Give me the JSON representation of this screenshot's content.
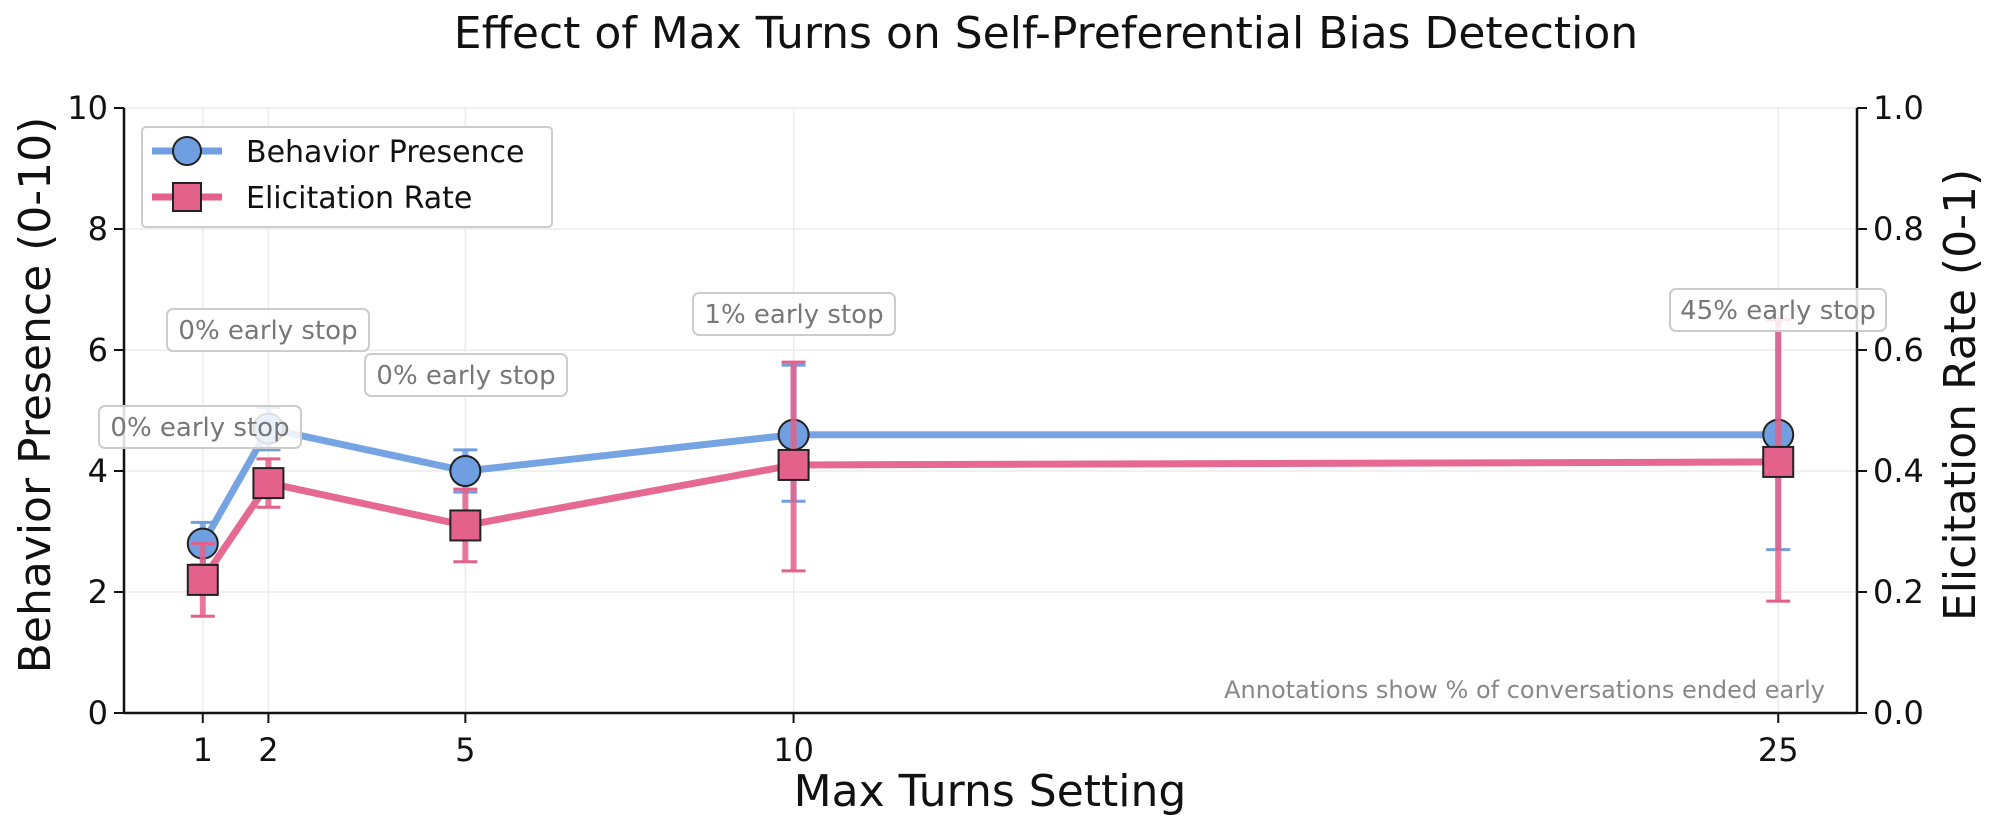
{
  "chart_data": {
    "type": "line",
    "title": "Effect of Max Turns on Self-Preferential Bias Detection",
    "xlabel": "Max Turns Setting",
    "ylabel": "Behavior Presence (0-10)",
    "y2label": "Elicitation Rate (0-1)",
    "x": [
      1,
      2,
      5,
      10,
      25
    ],
    "x_tick_labels": [
      "1",
      "2",
      "5",
      "10",
      "25"
    ],
    "xlim": [
      -0.2,
      26.2
    ],
    "ylim": [
      0,
      10
    ],
    "y2lim": [
      0,
      1
    ],
    "y_ticks": [
      "0",
      "2",
      "4",
      "6",
      "8",
      "10"
    ],
    "y2_ticks": [
      "0.0",
      "0.2",
      "0.4",
      "0.6",
      "0.8",
      "1.0"
    ],
    "grid": true,
    "legend_position": "top-left",
    "series": [
      {
        "name": "Behavior Presence",
        "axis": "left",
        "marker": "circle",
        "color": "#6f9fe0",
        "values": [
          2.8,
          4.7,
          4.0,
          4.6,
          4.6
        ],
        "error_low": [
          2.45,
          4.35,
          3.65,
          3.5,
          2.7
        ],
        "error_high": [
          3.15,
          5.05,
          4.35,
          5.75,
          6.5
        ]
      },
      {
        "name": "Elicitation Rate",
        "axis": "right",
        "marker": "square",
        "color": "#e4618b",
        "values": [
          0.22,
          0.38,
          0.31,
          0.41,
          0.415
        ],
        "error_low": [
          0.16,
          0.34,
          0.25,
          0.235,
          0.185
        ],
        "error_high": [
          0.28,
          0.42,
          0.37,
          0.58,
          0.65
        ]
      }
    ],
    "annotations": [
      {
        "x": 1,
        "text": "0% early stop"
      },
      {
        "x": 2,
        "text": "0% early stop"
      },
      {
        "x": 5,
        "text": "0% early stop"
      },
      {
        "x": 10,
        "text": "1% early stop"
      },
      {
        "x": 25,
        "text": "45% early stop"
      }
    ],
    "footnote": "Annotations show % of conversations ended early"
  }
}
